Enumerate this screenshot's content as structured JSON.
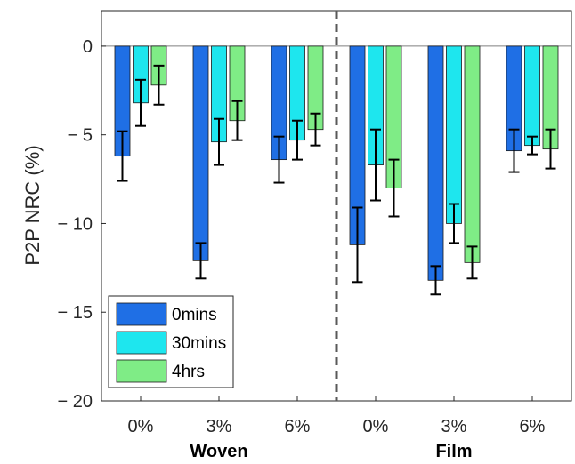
{
  "chart_data": {
    "type": "bar",
    "ylabel": "P2P NRC (%)",
    "ylim": [
      -20,
      2
    ],
    "yticks": [
      0,
      -5,
      -10,
      -15,
      -20
    ],
    "ytick_labels": [
      "0",
      "− 5",
      "− 10",
      "− 15",
      "− 20"
    ],
    "categories": [
      "0%",
      "3%",
      "6%",
      "0%",
      "3%",
      "6%"
    ],
    "groups": [
      {
        "label": "Woven",
        "span": [
          0,
          2
        ]
      },
      {
        "label": "Film",
        "span": [
          3,
          5
        ]
      }
    ],
    "separator_after_index": 2,
    "series": [
      {
        "name": "0mins",
        "color": "#1f6fe5",
        "values": [
          -6.2,
          -12.1,
          -6.4,
          -11.2,
          -13.2,
          -5.9
        ],
        "errors": [
          1.4,
          1.0,
          1.3,
          2.1,
          0.8,
          1.2
        ]
      },
      {
        "name": "30mins",
        "color": "#1ee6ee",
        "values": [
          -3.2,
          -5.4,
          -5.3,
          -6.7,
          -10.0,
          -5.6
        ],
        "errors": [
          1.3,
          1.3,
          1.1,
          2.0,
          1.1,
          0.5
        ]
      },
      {
        "name": "4hrs",
        "color": "#7fec86",
        "values": [
          -2.2,
          -4.2,
          -4.7,
          -8.0,
          -12.2,
          -5.8
        ],
        "errors": [
          1.1,
          1.1,
          0.9,
          1.6,
          0.9,
          1.1
        ]
      }
    ],
    "legend": {
      "position": "bottom-left"
    },
    "grid": false
  }
}
